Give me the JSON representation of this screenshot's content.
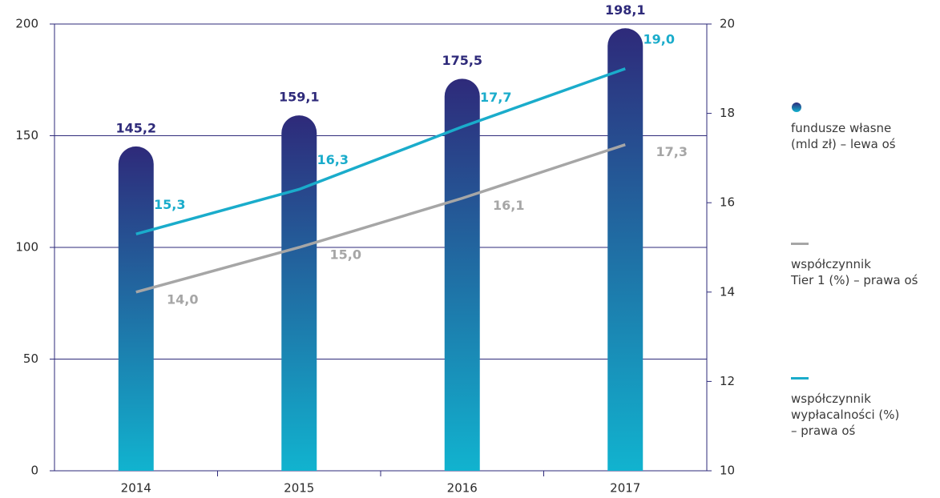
{
  "chart_data": {
    "type": "bar-line",
    "categories": [
      "2014",
      "2015",
      "2016",
      "2017"
    ],
    "series": [
      {
        "name": "fundusze własne\n(mld zł) – lewa oś",
        "type": "bar",
        "axis": "y",
        "color": "#2e2a7a",
        "color_bottom": "#11b3cf",
        "values": [
          145.2,
          159.1,
          175.5,
          198.1
        ],
        "value_labels": [
          "145,2",
          "159,1",
          "175,5",
          "198,1"
        ]
      },
      {
        "name": "współczynnik\nTier 1 (%) – prawa oś",
        "type": "line",
        "axis": "y2",
        "color": "#a6a6a6",
        "values": [
          14.0,
          15.0,
          16.1,
          17.3
        ],
        "value_labels": [
          "14,0",
          "15,0",
          "16,1",
          "17,3"
        ]
      },
      {
        "name": "współczynnik\nwypłacalności (%)\n– prawa oś",
        "type": "line",
        "axis": "y2",
        "color": "#1aaccb",
        "values": [
          15.3,
          16.3,
          17.7,
          19.0
        ],
        "value_labels": [
          "15,3",
          "16,3",
          "17,7",
          "19,0"
        ]
      }
    ],
    "ylim": [
      0,
      200
    ],
    "yticks": [
      0,
      50,
      100,
      150,
      200
    ],
    "y2lim": [
      10,
      20
    ],
    "y2ticks": [
      10,
      12,
      14,
      16,
      18,
      20
    ],
    "grid": true,
    "legend": "right"
  }
}
